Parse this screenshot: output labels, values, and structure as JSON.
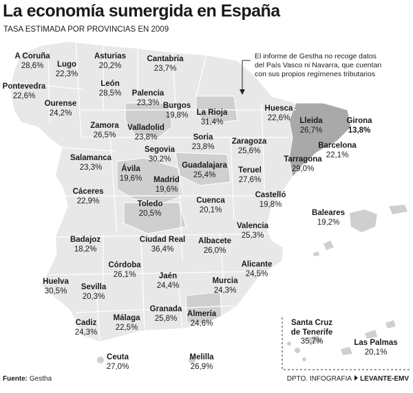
{
  "title": "La economía sumergida en España",
  "subtitle": "TASA ESTIMADA POR PROVINCIAS EN 2009",
  "note": "El informe de Gestha no recoge datos del País Vasco ni Navarra, que cuentan con sus propios regímenes tributarios",
  "footer": {
    "source_label": "Fuente:",
    "source_value": "Gestha",
    "credit_dept": "DPTO. INFOGRAFIA",
    "credit_brand": "LEVANTE-EMV"
  },
  "colors": {
    "land": "#e8e8e8",
    "land_medium": "#cfcfcf",
    "land_dark": "#a9a9a9",
    "border": "#ffffff",
    "text": "#1a1a1a"
  },
  "provinces": [
    {
      "id": "a-coruna",
      "name": "A Coruña",
      "value": "28,6%",
      "shade": "light"
    },
    {
      "id": "lugo",
      "name": "Lugo",
      "value": "22,3%",
      "shade": "light"
    },
    {
      "id": "asturias",
      "name": "Asturias",
      "value": "20,2%",
      "shade": "light"
    },
    {
      "id": "cantabria",
      "name": "Cantabria",
      "value": "23,7%",
      "shade": "light"
    },
    {
      "id": "pontevedra",
      "name": "Pontevedra",
      "value": "22,6%",
      "shade": "light"
    },
    {
      "id": "ourense",
      "name": "Ourense",
      "value": "24,2%",
      "shade": "light"
    },
    {
      "id": "leon",
      "name": "León",
      "value": "28,5%",
      "shade": "light"
    },
    {
      "id": "palencia",
      "name": "Palencia",
      "value": "23,3%",
      "shade": "light"
    },
    {
      "id": "burgos",
      "name": "Burgos",
      "value": "19,8%",
      "shade": "light"
    },
    {
      "id": "la-rioja",
      "name": "La Rioja",
      "value": "31,4%",
      "shade": "medium"
    },
    {
      "id": "huesca",
      "name": "Huesca",
      "value": "22,6%",
      "shade": "light"
    },
    {
      "id": "lleida",
      "name": "Lleida",
      "value": "26,7%",
      "shade": "dark"
    },
    {
      "id": "girona",
      "name": "Girona",
      "value": "13,8%",
      "shade": "dark",
      "highlight": true
    },
    {
      "id": "zamora",
      "name": "Zamora",
      "value": "26,5%",
      "shade": "light"
    },
    {
      "id": "valladolid",
      "name": "Valladolid",
      "value": "23,8%",
      "shade": "medium"
    },
    {
      "id": "soria",
      "name": "Soria",
      "value": "23,8%",
      "shade": "light"
    },
    {
      "id": "zaragoza",
      "name": "Zaragoza",
      "value": "25,6%",
      "shade": "light"
    },
    {
      "id": "barcelona",
      "name": "Barcelona",
      "value": "22,1%",
      "shade": "dark"
    },
    {
      "id": "segovia",
      "name": "Segovia",
      "value": "30,2%",
      "shade": "light"
    },
    {
      "id": "tarragona",
      "name": "Tarragona",
      "value": "29,0%",
      "shade": "dark"
    },
    {
      "id": "salamanca",
      "name": "Salamanca",
      "value": "23,3%",
      "shade": "light"
    },
    {
      "id": "avila",
      "name": "Ávila",
      "value": "19,6%",
      "shade": "medium"
    },
    {
      "id": "guadalajara",
      "name": "Guadalajara",
      "value": "25,4%",
      "shade": "medium"
    },
    {
      "id": "teruel",
      "name": "Teruel",
      "value": "27,6%",
      "shade": "light"
    },
    {
      "id": "madrid",
      "name": "Madrid",
      "value": "19,6%",
      "shade": "medium"
    },
    {
      "id": "caceres",
      "name": "Cáceres",
      "value": "22,9%",
      "shade": "light"
    },
    {
      "id": "cuenca",
      "name": "Cuenca",
      "value": "20,1%",
      "shade": "light"
    },
    {
      "id": "castello",
      "name": "Castelló",
      "value": "19,8%",
      "shade": "light"
    },
    {
      "id": "toledo",
      "name": "Toledo",
      "value": "20,5%",
      "shade": "medium"
    },
    {
      "id": "baleares",
      "name": "Baleares",
      "value": "19,2%",
      "shade": "light"
    },
    {
      "id": "valencia",
      "name": "Valencia",
      "value": "25,3%",
      "shade": "light"
    },
    {
      "id": "badajoz",
      "name": "Badajoz",
      "value": "18,2%",
      "shade": "light"
    },
    {
      "id": "ciudad-real",
      "name": "Ciudad Real",
      "value": "36,4%",
      "shade": "light"
    },
    {
      "id": "albacete",
      "name": "Albacete",
      "value": "26,0%",
      "shade": "light"
    },
    {
      "id": "cordoba",
      "name": "Córdoba",
      "value": "26,1%",
      "shade": "light"
    },
    {
      "id": "alicante",
      "name": "Alicante",
      "value": "24,5%",
      "shade": "light"
    },
    {
      "id": "jaen",
      "name": "Jaén",
      "value": "24,4%",
      "shade": "light"
    },
    {
      "id": "huelva",
      "name": "Huelva",
      "value": "30,5%",
      "shade": "light"
    },
    {
      "id": "sevilla",
      "name": "Sevilla",
      "value": "20,3%",
      "shade": "light"
    },
    {
      "id": "murcia",
      "name": "Murcia",
      "value": "24,3%",
      "shade": "light"
    },
    {
      "id": "granada",
      "name": "Granada",
      "value": "25,8%",
      "shade": "light"
    },
    {
      "id": "almeria",
      "name": "Almería",
      "value": "24,6%",
      "shade": "medium"
    },
    {
      "id": "cadiz",
      "name": "Cadiz",
      "value": "24,3%",
      "shade": "light"
    },
    {
      "id": "malaga",
      "name": "Málaga",
      "value": "22,5%",
      "shade": "light"
    },
    {
      "id": "santa-cruz-tenerife",
      "name": "Santa Cruz\nde Tenerife",
      "value": "35,7%",
      "shade": "light"
    },
    {
      "id": "las-palmas",
      "name": "Las Palmas",
      "value": "20,1%",
      "shade": "light"
    },
    {
      "id": "ceuta",
      "name": "Ceuta",
      "value": "27,0%",
      "shade": "light"
    },
    {
      "id": "melilla",
      "name": "Melilla",
      "value": "26,9%",
      "shade": "light"
    }
  ]
}
